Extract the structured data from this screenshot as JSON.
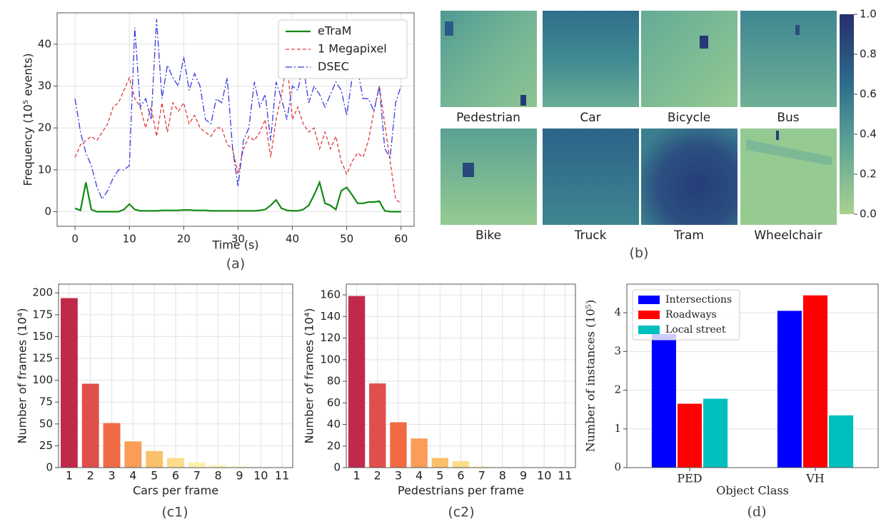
{
  "chart_data": [
    {
      "type": "line",
      "caption": "(a)",
      "xlabel": "Time (s)",
      "ylabel": "Frequency (10⁵ events)",
      "x": [
        0,
        1,
        2,
        3,
        4,
        5,
        6,
        7,
        8,
        9,
        10,
        11,
        12,
        13,
        14,
        15,
        16,
        17,
        18,
        19,
        20,
        21,
        22,
        23,
        24,
        25,
        26,
        27,
        28,
        29,
        30,
        31,
        32,
        33,
        34,
        35,
        36,
        37,
        38,
        39,
        40,
        41,
        42,
        43,
        44,
        45,
        46,
        47,
        48,
        49,
        50,
        51,
        52,
        53,
        54,
        55,
        56,
        57,
        58,
        59,
        60
      ],
      "xlim": [
        -3.3,
        62.4
      ],
      "xticks": [
        0,
        10,
        20,
        30,
        40,
        50,
        60
      ],
      "ylim": [
        -3.5,
        47.5
      ],
      "yticks": [
        0,
        10,
        20,
        30,
        40
      ],
      "grid": true,
      "legend": "upper right",
      "series": [
        {
          "name": "eTraM",
          "color": "#138a13",
          "style": "solid",
          "values": [
            0.8,
            0.3,
            7,
            0.5,
            0,
            0,
            0,
            0,
            0,
            0.5,
            1.8,
            0.5,
            0.2,
            0.2,
            0.2,
            0.2,
            0.3,
            0.3,
            0.3,
            0.3,
            0.4,
            0.4,
            0.3,
            0.3,
            0.3,
            0.2,
            0.2,
            0.2,
            0.2,
            0.2,
            0.2,
            0.2,
            0.2,
            0.2,
            0.3,
            0.5,
            1.5,
            2.8,
            0.8,
            0.3,
            0.2,
            0.2,
            0.5,
            1.5,
            4,
            7,
            2,
            1.5,
            0.5,
            5,
            5.8,
            4,
            2,
            2,
            2.3,
            2.3,
            2.5,
            0.2,
            0,
            0,
            0
          ]
        },
        {
          "name": "1 Megapixel",
          "color": "#e03a3a",
          "style": "dashed",
          "values": [
            13,
            16,
            17,
            18,
            17,
            19,
            21,
            25,
            26,
            29,
            32,
            27,
            25,
            20,
            25,
            18,
            26,
            19,
            26,
            24,
            26,
            21,
            23,
            20,
            19,
            18,
            20,
            20,
            16,
            15,
            9,
            15,
            18,
            17,
            19,
            22,
            13,
            22,
            28,
            36,
            22,
            25,
            21,
            19,
            20,
            15,
            19,
            15,
            18,
            12,
            9,
            12,
            14,
            13,
            17,
            24,
            30,
            21,
            12,
            3,
            2
          ]
        },
        {
          "name": "DSEC",
          "color": "#3a3ae0",
          "style": "dashdot",
          "values": [
            27,
            19,
            14,
            11,
            6,
            3,
            5,
            8,
            10,
            10,
            11,
            44,
            25,
            27,
            22,
            46,
            27,
            35,
            32,
            30,
            37,
            29,
            33,
            30,
            22,
            21,
            27,
            26,
            32,
            15,
            6,
            17,
            20,
            31,
            25,
            28,
            17,
            31,
            27,
            22,
            30,
            29,
            35,
            26,
            30,
            28,
            25,
            28,
            31,
            29,
            23,
            32,
            34,
            27,
            27,
            24,
            30,
            15,
            13,
            26,
            30
          ]
        }
      ]
    },
    {
      "type": "heatmap",
      "caption": "(b)",
      "panels": [
        "Pedestrian",
        "Car",
        "Bicycle",
        "Bus",
        "Bike",
        "Truck",
        "Tram",
        "Wheelchair"
      ],
      "zlim": [
        0,
        1
      ],
      "zticks": [
        {
          "value": 0,
          "label": "0.0"
        },
        {
          "value": 0.2,
          "label": "0.2"
        },
        {
          "value": 0.4,
          "label": "0.4"
        },
        {
          "value": 0.6,
          "label": "0.6"
        },
        {
          "value": 0.8,
          "label": "0.8"
        },
        {
          "value": 1,
          "label": "1.0"
        }
      ]
    },
    {
      "type": "bar",
      "caption": "(c1)",
      "xlabel": "Cars per frame",
      "ylabel": "Number of frames (10⁴)",
      "categories": [
        "1",
        "2",
        "3",
        "4",
        "5",
        "6",
        "7",
        "8",
        "9",
        "10",
        "11"
      ],
      "values": [
        194,
        96,
        51,
        30,
        19,
        11,
        6,
        3,
        2,
        1,
        0.5
      ],
      "colors": [
        "#c1294a",
        "#e04f4b",
        "#f06b43",
        "#f99d58",
        "#fbc06c",
        "#fddc8a",
        "#fff1a8",
        "#fff7be",
        "#fffbd2",
        "#fffde0",
        "#fffee8"
      ],
      "ylim": [
        0,
        210
      ],
      "yticks": [
        0,
        25,
        50,
        75,
        100,
        125,
        150,
        175,
        200
      ],
      "grid": true
    },
    {
      "type": "bar",
      "caption": "(c2)",
      "xlabel": "Pedestrians per frame",
      "ylabel": "Number of frames (10⁴)",
      "categories": [
        "1",
        "2",
        "3",
        "4",
        "5",
        "6",
        "7",
        "8",
        "9",
        "10",
        "11"
      ],
      "values": [
        159,
        78,
        42,
        27,
        9,
        6,
        1,
        0.3,
        0.2,
        0.1,
        0.1
      ],
      "colors": [
        "#c1294a",
        "#e04f4b",
        "#f06b43",
        "#f99d58",
        "#fbc06c",
        "#fddc8a",
        "#fff1a8",
        "#fff7be",
        "#fffbd2",
        "#fffde0",
        "#fffee8"
      ],
      "ylim": [
        0,
        170
      ],
      "yticks": [
        0,
        20,
        40,
        60,
        80,
        100,
        120,
        140,
        160
      ],
      "grid": true
    },
    {
      "type": "groupedbar",
      "caption": "(d)",
      "xlabel": "Object Class",
      "ylabel": "Number of instances (10⁵)",
      "categories": [
        "PED",
        "VH"
      ],
      "legend": "upper left",
      "series": [
        {
          "name": "Intersections",
          "color": "#0000ff",
          "values": [
            3.45,
            4.05
          ]
        },
        {
          "name": "Roadways",
          "color": "#ff0000",
          "values": [
            1.65,
            4.45
          ]
        },
        {
          "name": "Local street",
          "color": "#00bfbf",
          "values": [
            1.78,
            1.35
          ]
        }
      ],
      "ylim": [
        0,
        4.74
      ],
      "yticks": [
        0,
        1,
        2,
        3,
        4
      ],
      "grid": true
    }
  ]
}
